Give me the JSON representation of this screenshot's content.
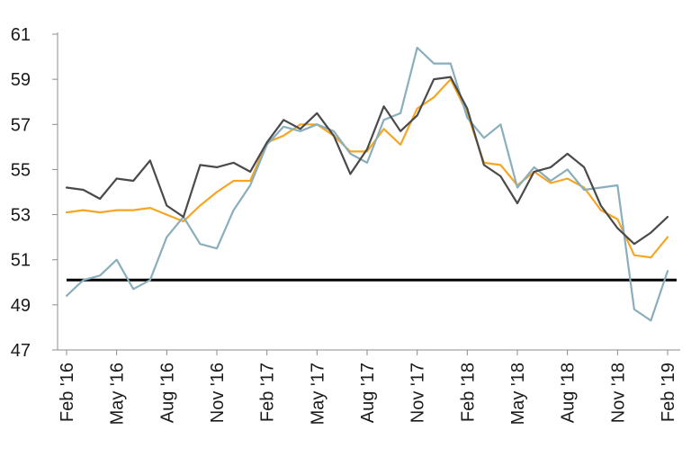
{
  "chart_data": {
    "type": "line",
    "title": "",
    "xlabel": "",
    "ylabel": "",
    "ylim": [
      47,
      61
    ],
    "yticks": [
      47,
      49,
      51,
      53,
      55,
      57,
      59,
      61
    ],
    "grid": false,
    "legend": "none",
    "x": [
      "Feb '16",
      "Mar '16",
      "Apr '16",
      "May '16",
      "Jun '16",
      "Jul '16",
      "Aug '16",
      "Sep '16",
      "Oct '16",
      "Nov '16",
      "Dec '16",
      "Jan '17",
      "Feb '17",
      "Mar '17",
      "Apr '17",
      "May '17",
      "Jun '17",
      "Jul '17",
      "Aug '17",
      "Sep '17",
      "Oct '17",
      "Nov '17",
      "Dec '17",
      "Jan '18",
      "Feb '18",
      "Mar '18",
      "Apr '18",
      "May '18",
      "Jun '18",
      "Jul '18",
      "Aug '18",
      "Sep '18",
      "Oct '18",
      "Nov '18",
      "Dec '18",
      "Jan '19",
      "Feb '19"
    ],
    "x_tick_labels": [
      "Feb '16",
      "May '16",
      "Aug '16",
      "Nov '16",
      "Feb '17",
      "May '17",
      "Aug '17",
      "Nov '17",
      "Feb '18",
      "May '18",
      "Aug '18",
      "Nov '18",
      "Feb '19"
    ],
    "series": [
      {
        "color": "#f5a623",
        "values": [
          53.1,
          53.2,
          53.1,
          53.2,
          53.2,
          53.3,
          53.0,
          52.7,
          53.4,
          54.0,
          54.5,
          54.5,
          56.2,
          56.5,
          57.0,
          57.0,
          56.5,
          55.8,
          55.8,
          56.8,
          56.1,
          57.7,
          58.2,
          59.0,
          57.5,
          55.3,
          55.2,
          54.3,
          54.9,
          54.4,
          54.6,
          54.2,
          53.2,
          52.8,
          51.2,
          51.1,
          52.0
        ]
      },
      {
        "color": "#8aaebb",
        "values": [
          49.4,
          50.1,
          50.3,
          51.0,
          49.7,
          50.1,
          52.0,
          52.9,
          51.7,
          51.5,
          53.2,
          54.3,
          56.1,
          56.9,
          56.7,
          57.0,
          56.7,
          55.7,
          55.3,
          57.2,
          57.5,
          60.4,
          59.7,
          59.7,
          57.3,
          56.4,
          57.0,
          54.2,
          55.1,
          54.5,
          55.0,
          54.1,
          54.2,
          54.3,
          48.8,
          48.3,
          50.5
        ]
      },
      {
        "color": "#4a4a4a",
        "values": [
          54.2,
          54.1,
          53.7,
          54.6,
          54.5,
          55.4,
          53.4,
          52.9,
          55.2,
          55.1,
          55.3,
          54.9,
          56.2,
          57.2,
          56.8,
          57.5,
          56.5,
          54.8,
          55.9,
          57.8,
          56.7,
          57.4,
          59.0,
          59.1,
          57.7,
          55.2,
          54.7,
          53.5,
          54.9,
          55.1,
          55.7,
          55.1,
          53.4,
          52.4,
          51.7,
          52.2,
          52.9
        ]
      }
    ],
    "reference_line": {
      "y": 50.1,
      "color": "#000000"
    }
  }
}
